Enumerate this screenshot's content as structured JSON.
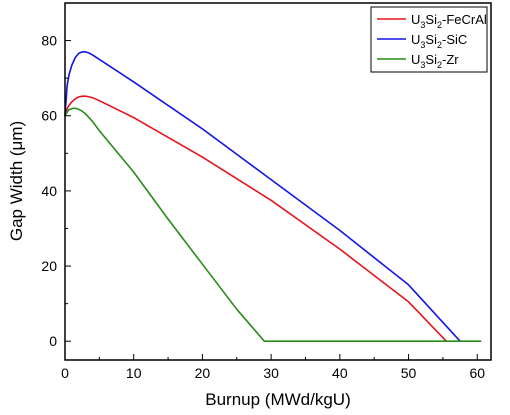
{
  "chart_data": {
    "type": "line",
    "xlabel": "Burnup (MWd/kgU)",
    "ylabel": "Gap Width (μm)",
    "xlim": [
      0,
      62
    ],
    "ylim": [
      -5,
      90
    ],
    "xticks": [
      0,
      10,
      20,
      30,
      40,
      50,
      60
    ],
    "yticks": [
      0,
      20,
      40,
      60,
      80
    ],
    "grid": false,
    "legend_position": "top-right",
    "series": [
      {
        "name": "U3Si2-FeCrAl",
        "legend_parts": {
          "base": "U",
          "sub1": "3",
          "mid": "Si",
          "sub2": "2",
          "suffix": "-FeCrAl"
        },
        "color": "#e8141c",
        "x": [
          0,
          0.5,
          1,
          1.5,
          2,
          2.5,
          3,
          3.5,
          4,
          5,
          10,
          20,
          30,
          40,
          50,
          55.5
        ],
        "y": [
          60.5,
          62.5,
          63.7,
          64.5,
          65.0,
          65.2,
          65.2,
          65.0,
          64.8,
          64.0,
          59.5,
          49.0,
          37.5,
          24.5,
          10.5,
          0
        ]
      },
      {
        "name": "U3Si2-SiC",
        "legend_parts": {
          "base": "U",
          "sub1": "3",
          "mid": "Si",
          "sub2": "2",
          "suffix": "-SiC"
        },
        "color": "#1414e6",
        "x": [
          0,
          0.3,
          0.6,
          1,
          1.5,
          2,
          2.5,
          3,
          3.5,
          4,
          5,
          10,
          20,
          30,
          40,
          50,
          57.5
        ],
        "y": [
          60.0,
          68.0,
          71.0,
          73.5,
          75.5,
          76.6,
          77.0,
          77.0,
          76.7,
          76.2,
          75.0,
          69.0,
          56.5,
          43.0,
          29.5,
          15.0,
          0
        ]
      },
      {
        "name": "U3Si2-Zr",
        "legend_parts": {
          "base": "U",
          "sub1": "3",
          "mid": "Si",
          "sub2": "2",
          "suffix": "-Zr"
        },
        "color": "#2a8a1a",
        "x": [
          0,
          0.5,
          1,
          1.5,
          2,
          2.5,
          3,
          4,
          5,
          10,
          15,
          20,
          25,
          29,
          40,
          50,
          60.5
        ],
        "y": [
          60.0,
          61.5,
          61.9,
          62.0,
          61.7,
          61.2,
          60.5,
          58.5,
          56.0,
          45.0,
          32.5,
          20.5,
          8.5,
          0,
          0,
          0,
          0
        ]
      }
    ]
  }
}
